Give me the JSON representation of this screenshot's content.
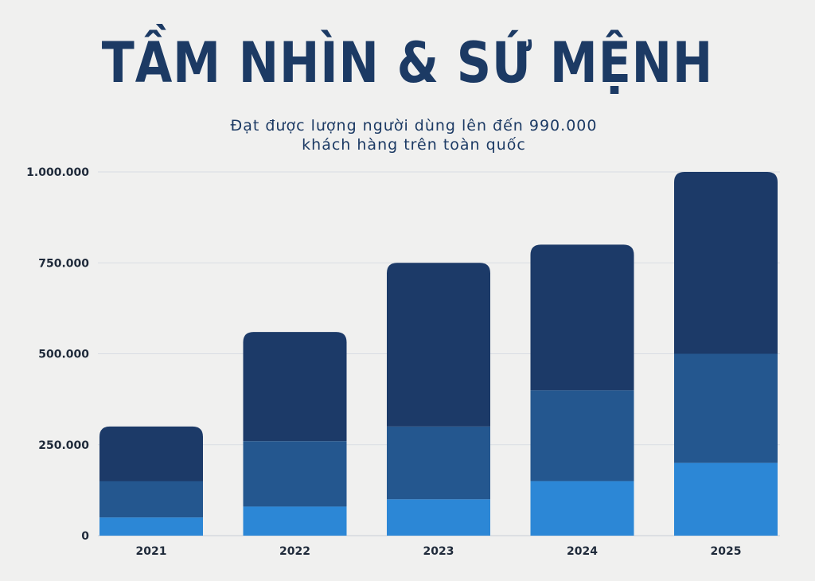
{
  "title": "TẦM NHÌN & SỨ MỆNH",
  "subtitle_lines": [
    "Đạt được lượng người dùng lên đến 990.000",
    "khách hàng trên toàn quốc"
  ],
  "colors": {
    "background": "#f0f0ef",
    "title": "#1c3a64",
    "gridline": "#d9dde3",
    "series": [
      "#2c87d6",
      "#24578f",
      "#1c3a68"
    ]
  },
  "chart_data": {
    "type": "bar",
    "stacked": true,
    "categories": [
      "2021",
      "2022",
      "2023",
      "2024",
      "2025"
    ],
    "series": [
      {
        "values": [
          50000,
          80000,
          100000,
          150000,
          200000
        ]
      },
      {
        "values": [
          100000,
          180000,
          200000,
          250000,
          300000
        ]
      },
      {
        "values": [
          150000,
          300000,
          450000,
          400000,
          500000
        ]
      }
    ],
    "totals": [
      300000,
      560000,
      750000,
      800000,
      1000000
    ],
    "ylim": [
      0,
      1000000
    ],
    "yticks": [
      0,
      250000,
      500000,
      750000,
      1000000
    ],
    "ytick_labels": [
      "0",
      "250.000",
      "500.000",
      "750.000",
      "1.000.000"
    ],
    "grid": true,
    "legend": "none"
  }
}
